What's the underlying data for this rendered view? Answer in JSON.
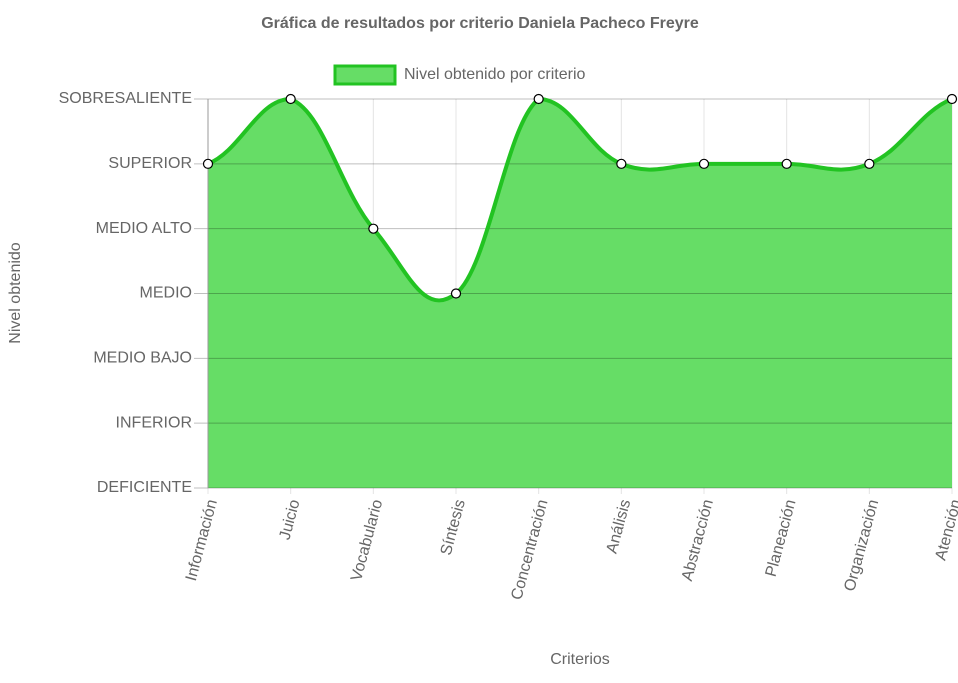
{
  "chart_data": {
    "type": "area",
    "title": "Gráfica de resultados por criterio Daniela Pacheco Freyre",
    "x_label": "Criterios",
    "y_label": "Nivel obtenido",
    "categories": [
      "Información",
      "Juicio",
      "Vocabulario",
      "Síntesis",
      "Concentración",
      "Análisis",
      "Abstracción",
      "Planeación",
      "Organización",
      "Atención"
    ],
    "series": [
      {
        "name": "Nivel obtenido por criterio",
        "color": "#22c322",
        "fill": "#66dd66",
        "values": [
          5,
          6,
          4,
          3,
          6,
          5,
          5,
          5,
          5,
          6
        ]
      }
    ],
    "ylim": [
      0,
      6
    ],
    "yticks": [
      {
        "value": 0,
        "label": "DEFICIENTE"
      },
      {
        "value": 1,
        "label": "INFERIOR"
      },
      {
        "value": 2,
        "label": "MEDIO BAJO"
      },
      {
        "value": 3,
        "label": "MEDIO"
      },
      {
        "value": 4,
        "label": "MEDIO ALTO"
      },
      {
        "value": 5,
        "label": "SUPERIOR"
      },
      {
        "value": 6,
        "label": "SOBRESALIENTE"
      }
    ],
    "grid": true,
    "legend": "top"
  }
}
